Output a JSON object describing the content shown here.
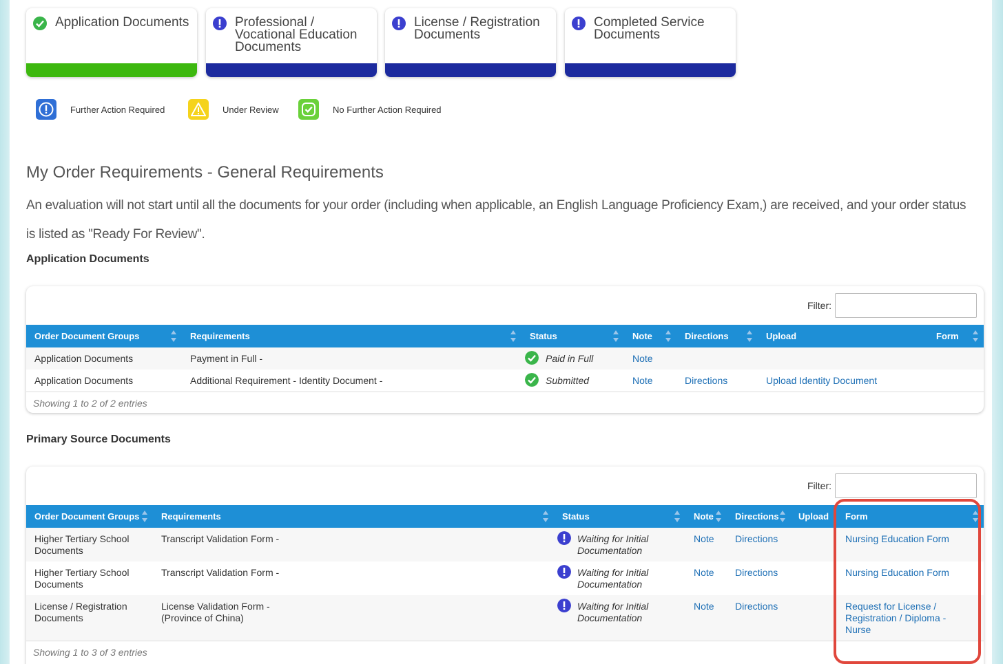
{
  "cards": [
    {
      "title": "Application Documents",
      "icon": "check-circle-icon",
      "bar_color": "#3db80f",
      "icon_color": "#3ab54a"
    },
    {
      "title": "Professional / Vocational Education Documents",
      "icon": "exclamation-circle-icon",
      "bar_color": "#1c2a9e",
      "icon_color": "#3b3fcf"
    },
    {
      "title": "License / Registration Documents",
      "icon": "exclamation-circle-icon",
      "bar_color": "#1c2a9e",
      "icon_color": "#3b3fcf"
    },
    {
      "title": "Completed Service Documents",
      "icon": "exclamation-circle-icon",
      "bar_color": "#1c2a9e",
      "icon_color": "#3b3fcf"
    }
  ],
  "legend": [
    {
      "label": "Further Action Required",
      "icon": "exclamation-icon",
      "color": "#2f6fd6"
    },
    {
      "label": "Under Review",
      "icon": "warning-icon",
      "color": "#f5d31c"
    },
    {
      "label": "No Further Action Required",
      "icon": "check-icon",
      "color": "#6ad13a"
    }
  ],
  "main": {
    "title": "My Order Requirements - General Requirements",
    "intro": "An evaluation will not start until all the documents for your order (including when applicable, an English Language Proficiency Exam,) are received, and your order status is listed as \"Ready For Review\"."
  },
  "app_docs": {
    "heading": "Application Documents",
    "filter_label": "Filter:",
    "columns": [
      "Order Document Groups",
      "Requirements",
      "Status",
      "Note",
      "Directions",
      "Upload",
      "Form"
    ],
    "rows": [
      {
        "group": "Application Documents",
        "requirement": "Payment in Full -",
        "status": "Paid in Full",
        "note": "Note",
        "directions": "",
        "upload": ""
      },
      {
        "group": "Application Documents",
        "requirement": "Additional Requirement - Identity Document -",
        "status": "Submitted",
        "note": "Note",
        "directions": "Directions",
        "upload": "Upload Identity Document"
      }
    ],
    "footer": "Showing 1 to 2 of 2 entries"
  },
  "primary_docs": {
    "heading": "Primary Source Documents",
    "filter_label": "Filter:",
    "columns": [
      "Order Document Groups",
      "Requirements",
      "Status",
      "Note",
      "Directions",
      "Upload",
      "Form"
    ],
    "rows": [
      {
        "group_l1": "Higher Tertiary School",
        "group_l2": "Documents",
        "req_l1": "Transcript Validation Form -",
        "req_l2": "",
        "status_l1": "Waiting for Initial",
        "status_l2": "Documentation",
        "note": "Note",
        "directions": "Directions",
        "form_l1": "Nursing Education Form",
        "form_l2": "",
        "form_l3": ""
      },
      {
        "group_l1": "Higher Tertiary School",
        "group_l2": "Documents",
        "req_l1": "Transcript Validation Form -",
        "req_l2": "",
        "status_l1": "Waiting for Initial",
        "status_l2": "Documentation",
        "note": "Note",
        "directions": "Directions",
        "form_l1": "Nursing Education Form",
        "form_l2": "",
        "form_l3": ""
      },
      {
        "group_l1": "License / Registration",
        "group_l2": "Documents",
        "req_l1": "License Validation Form -",
        "req_l2": "(Province of China)",
        "status_l1": "Waiting for Initial",
        "status_l2": "Documentation",
        "note": "Note",
        "directions": "Directions",
        "form_l1": "Request for License /",
        "form_l2": "Registration / Diploma -",
        "form_l3": "Nurse"
      }
    ],
    "footer": "Showing 1 to 3 of 3 entries"
  },
  "colors": {
    "header_blue": "#1e8fd6",
    "link": "#1d6fb5",
    "highlight": "#e0473c"
  }
}
